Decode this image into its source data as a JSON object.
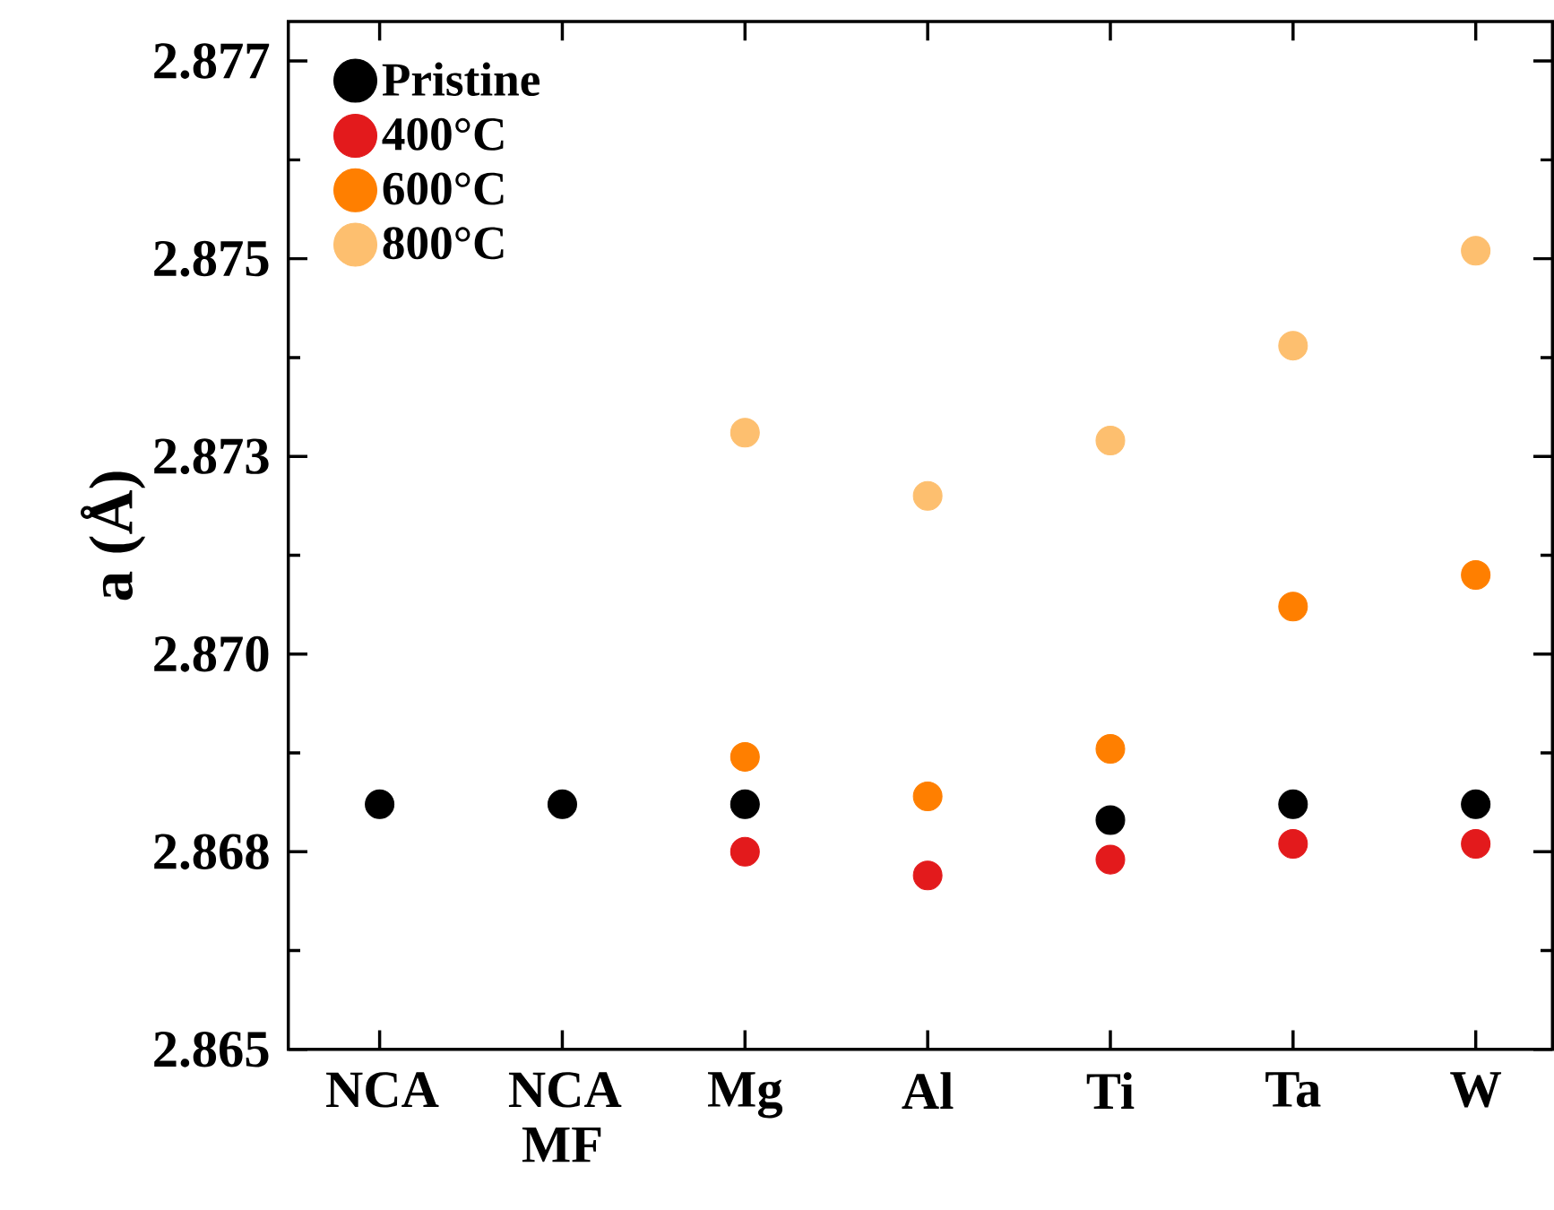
{
  "chart_data": {
    "type": "scatter",
    "ylabel": "a (Å)",
    "categories": [
      "NCA",
      "NCA MF",
      "Mg",
      "Al",
      "Ti",
      "Ta",
      "W"
    ],
    "ylim": [
      2.865,
      2.878
    ],
    "yticks": [
      2.865,
      {
        "value": 2.8675,
        "label": "2.868"
      },
      {
        "value": 2.87,
        "label": "2.870"
      },
      {
        "value": 2.8725,
        "label": "2.873"
      },
      2.875,
      {
        "value": 2.8775,
        "label": "2.877"
      }
    ],
    "legend": "top left",
    "grid": false,
    "series": [
      {
        "name": "Pristine",
        "color": "#000000",
        "values": [
          2.8681,
          2.8681,
          2.8681,
          null,
          2.8679,
          2.8681,
          2.8681
        ]
      },
      {
        "name": "400°C",
        "color": "#e31a1c",
        "values": [
          null,
          null,
          2.8675,
          2.8672,
          2.8674,
          2.8676,
          2.8676
        ]
      },
      {
        "name": "600°C",
        "color": "#ff7f00",
        "values": [
          null,
          null,
          2.8687,
          2.8682,
          2.8688,
          2.8706,
          2.871
        ]
      },
      {
        "name": "800°C",
        "color": "#fdbf6f",
        "values": [
          null,
          null,
          2.8728,
          2.872,
          2.8727,
          2.8739,
          2.8751
        ]
      }
    ]
  }
}
